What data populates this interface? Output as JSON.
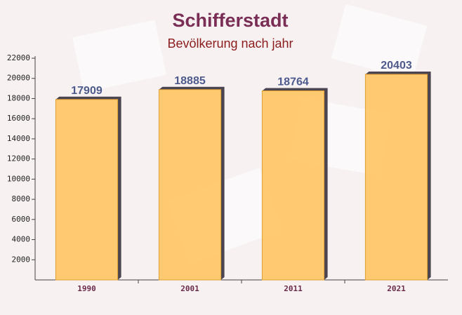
{
  "chart_data": {
    "type": "bar",
    "title": "Schifferstadt",
    "subtitle": "Bevölkerung nach jahr",
    "categories": [
      "1990",
      "2001",
      "2011",
      "2021"
    ],
    "values": [
      17909,
      18885,
      18764,
      20403
    ],
    "color": "#ffc25a",
    "ylim": [
      0,
      22000
    ],
    "yticks": [
      2000,
      4000,
      6000,
      8000,
      10000,
      12000,
      14000,
      16000,
      18000,
      20000,
      22000
    ]
  }
}
